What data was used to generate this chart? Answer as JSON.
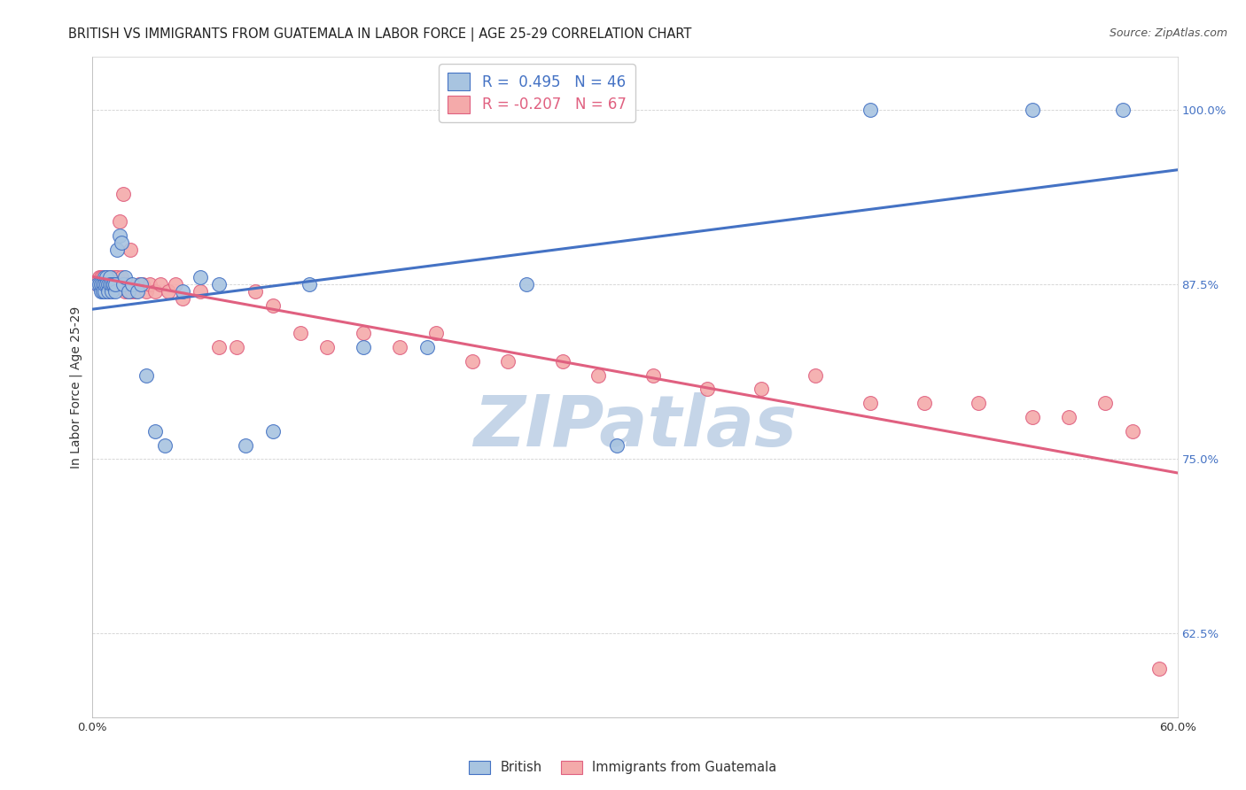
{
  "title": "BRITISH VS IMMIGRANTS FROM GUATEMALA IN LABOR FORCE | AGE 25-29 CORRELATION CHART",
  "source": "Source: ZipAtlas.com",
  "ylabel_label": "In Labor Force | Age 25-29",
  "xlim": [
    0.0,
    0.6
  ],
  "ylim": [
    0.565,
    1.038
  ],
  "xticks": [
    0.0,
    0.1,
    0.2,
    0.3,
    0.4,
    0.5,
    0.6
  ],
  "xticklabels": [
    "0.0%",
    "",
    "",
    "",
    "",
    "",
    "60.0%"
  ],
  "yticks": [
    0.625,
    0.75,
    0.875,
    1.0
  ],
  "yticklabels": [
    "62.5%",
    "75.0%",
    "87.5%",
    "100.0%"
  ],
  "blue_R": 0.495,
  "blue_N": 46,
  "pink_R": -0.207,
  "pink_N": 67,
  "blue_color": "#A8C4E0",
  "pink_color": "#F4AAAA",
  "blue_edge_color": "#4472C4",
  "pink_edge_color": "#E06080",
  "blue_line_color": "#4472C4",
  "pink_line_color": "#E06080",
  "watermark": "ZIPatlas",
  "watermark_color": "#C5D5E8",
  "legend_label_blue": "British",
  "legend_label_pink": "Immigrants from Guatemala",
  "blue_x": [
    0.003,
    0.004,
    0.005,
    0.005,
    0.006,
    0.006,
    0.007,
    0.007,
    0.007,
    0.008,
    0.008,
    0.009,
    0.009,
    0.01,
    0.01,
    0.011,
    0.011,
    0.012,
    0.012,
    0.013,
    0.013,
    0.014,
    0.015,
    0.016,
    0.017,
    0.018,
    0.02,
    0.022,
    0.025,
    0.027,
    0.03,
    0.035,
    0.04,
    0.05,
    0.06,
    0.07,
    0.085,
    0.1,
    0.12,
    0.15,
    0.185,
    0.24,
    0.29,
    0.43,
    0.52,
    0.57
  ],
  "blue_y": [
    0.875,
    0.875,
    0.87,
    0.875,
    0.875,
    0.87,
    0.88,
    0.87,
    0.875,
    0.88,
    0.875,
    0.875,
    0.87,
    0.88,
    0.875,
    0.87,
    0.875,
    0.875,
    0.875,
    0.87,
    0.875,
    0.9,
    0.91,
    0.905,
    0.875,
    0.88,
    0.87,
    0.875,
    0.87,
    0.875,
    0.81,
    0.77,
    0.76,
    0.87,
    0.88,
    0.875,
    0.76,
    0.77,
    0.875,
    0.83,
    0.83,
    0.875,
    0.76,
    1.0,
    1.0,
    1.0
  ],
  "pink_x": [
    0.003,
    0.004,
    0.005,
    0.005,
    0.006,
    0.006,
    0.007,
    0.007,
    0.008,
    0.008,
    0.009,
    0.009,
    0.01,
    0.01,
    0.011,
    0.011,
    0.012,
    0.012,
    0.013,
    0.013,
    0.014,
    0.014,
    0.015,
    0.015,
    0.016,
    0.017,
    0.018,
    0.019,
    0.02,
    0.021,
    0.022,
    0.024,
    0.026,
    0.028,
    0.03,
    0.032,
    0.035,
    0.038,
    0.042,
    0.046,
    0.05,
    0.06,
    0.07,
    0.08,
    0.09,
    0.1,
    0.115,
    0.13,
    0.15,
    0.17,
    0.19,
    0.21,
    0.23,
    0.26,
    0.28,
    0.31,
    0.34,
    0.37,
    0.4,
    0.43,
    0.46,
    0.49,
    0.52,
    0.54,
    0.56,
    0.575,
    0.59
  ],
  "pink_y": [
    0.875,
    0.88,
    0.875,
    0.88,
    0.875,
    0.88,
    0.875,
    0.875,
    0.875,
    0.88,
    0.875,
    0.87,
    0.88,
    0.875,
    0.875,
    0.88,
    0.875,
    0.875,
    0.88,
    0.875,
    0.875,
    0.88,
    0.92,
    0.875,
    0.88,
    0.94,
    0.87,
    0.875,
    0.87,
    0.9,
    0.87,
    0.87,
    0.875,
    0.875,
    0.87,
    0.875,
    0.87,
    0.875,
    0.87,
    0.875,
    0.865,
    0.87,
    0.83,
    0.83,
    0.87,
    0.86,
    0.84,
    0.83,
    0.84,
    0.83,
    0.84,
    0.82,
    0.82,
    0.82,
    0.81,
    0.81,
    0.8,
    0.8,
    0.81,
    0.79,
    0.79,
    0.79,
    0.78,
    0.78,
    0.79,
    0.77,
    0.6
  ],
  "title_fontsize": 10.5,
  "source_fontsize": 9,
  "axis_label_fontsize": 10,
  "tick_fontsize": 9.5
}
